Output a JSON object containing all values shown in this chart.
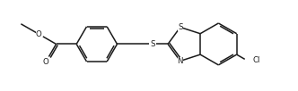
{
  "background_color": "#ffffff",
  "line_color": "#1a1a1a",
  "line_width": 1.1,
  "font_size": 6.2,
  "figsize": [
    3.32,
    1.02
  ],
  "dpi": 100,
  "xlim": [
    -0.3,
    10.0
  ],
  "ylim": [
    0.2,
    3.4
  ]
}
